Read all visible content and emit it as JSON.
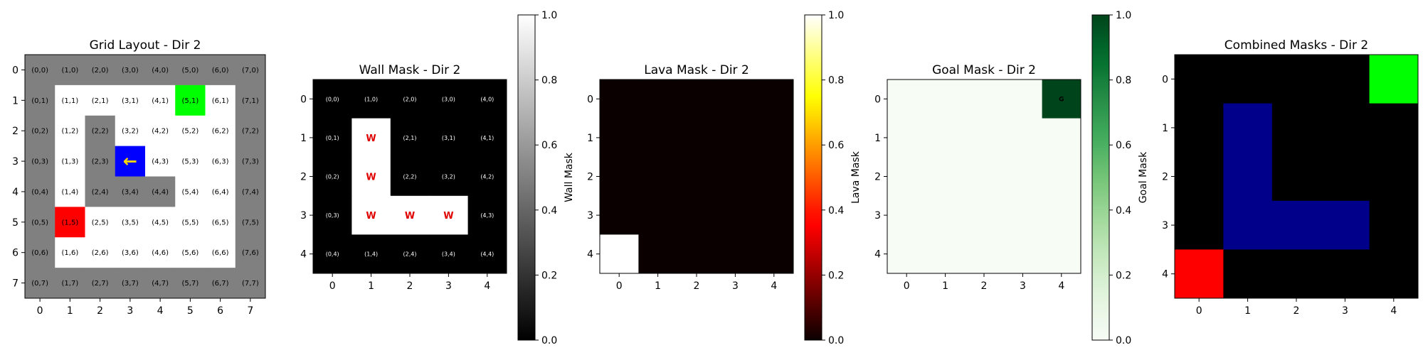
{
  "chart_data": [
    {
      "type": "heatmap",
      "id": "grid",
      "title": "Grid Layout - Dir 2",
      "size": 8,
      "x_ticks": [
        "0",
        "1",
        "2",
        "3",
        "4",
        "5",
        "6",
        "7"
      ],
      "y_ticks": [
        "0",
        "1",
        "2",
        "3",
        "4",
        "5",
        "6",
        "7"
      ],
      "cells": [
        [
          "(0,0)",
          "(1,0)",
          "(2,0)",
          "(3,0)",
          "(4,0)",
          "(5,0)",
          "(6,0)",
          "(7,0)"
        ],
        [
          "(0,1)",
          "(1,1)",
          "(2,1)",
          "(3,1)",
          "(4,1)",
          "(5,1)",
          "(6,1)",
          "(7,1)"
        ],
        [
          "(0,2)",
          "(1,2)",
          "(2,2)",
          "(3,2)",
          "(4,2)",
          "(5,2)",
          "(6,2)",
          "(7,2)"
        ],
        [
          "(0,3)",
          "(1,3)",
          "(2,3)",
          "",
          "(4,3)",
          "(5,3)",
          "(6,3)",
          "(7,3)"
        ],
        [
          "(0,4)",
          "(1,4)",
          "(2,4)",
          "(3,4)",
          "(4,4)",
          "(5,4)",
          "(6,4)",
          "(7,4)"
        ],
        [
          "(0,5)",
          "(1,5)",
          "(2,5)",
          "(3,5)",
          "(4,5)",
          "(5,5)",
          "(6,5)",
          "(7,5)"
        ],
        [
          "(0,6)",
          "(1,6)",
          "(2,6)",
          "(3,6)",
          "(4,6)",
          "(5,6)",
          "(6,6)",
          "(7,6)"
        ],
        [
          "(0,7)",
          "(1,7)",
          "(2,7)",
          "(3,7)",
          "(4,7)",
          "(5,7)",
          "(6,7)",
          "(7,7)"
        ]
      ],
      "cell_types": [
        "WWWWWWWW",
        "WEEEEGEW",
        "WEWEEEEW",
        "WEWAEEEW",
        "WEWWWEEW",
        "WLEEEEEW",
        "WEEEEEEW",
        "WWWWWWWW"
      ],
      "agent_symbol": "←",
      "colors": {
        "W": "#808080",
        "E": "#ffffff",
        "G": "#00ff00",
        "L": "#ff0000",
        "A": "#0000ff",
        "agent_arrow": "#ffd700"
      }
    },
    {
      "type": "heatmap",
      "id": "wall",
      "title": "Wall Mask - Dir 2",
      "size": 5,
      "x_ticks": [
        "0",
        "1",
        "2",
        "3",
        "4"
      ],
      "y_ticks": [
        "0",
        "1",
        "2",
        "3",
        "4"
      ],
      "values": [
        [
          0,
          0,
          0,
          0,
          0
        ],
        [
          0,
          1,
          0,
          0,
          0
        ],
        [
          0,
          1,
          0,
          0,
          0
        ],
        [
          0,
          1,
          1,
          1,
          0
        ],
        [
          0,
          0,
          0,
          0,
          0
        ]
      ],
      "cells": [
        [
          "(0,0)",
          "(1,0)",
          "(2,0)",
          "(3,0)",
          "(4,0)"
        ],
        [
          "(0,1)",
          "W",
          "(2,1)",
          "(3,1)",
          "(4,1)"
        ],
        [
          "(0,2)",
          "W",
          "(2,2)",
          "(3,2)",
          "(4,2)"
        ],
        [
          "(0,3)",
          "W",
          "W",
          "W",
          "(4,3)"
        ],
        [
          "(0,4)",
          "(1,4)",
          "(2,4)",
          "(3,4)",
          "(4,4)"
        ]
      ],
      "colormap": "gray",
      "colorbar": {
        "label": "Wall Mask",
        "ticks": [
          "0.0",
          "0.2",
          "0.4",
          "0.6",
          "0.8",
          "1.0"
        ]
      }
    },
    {
      "type": "heatmap",
      "id": "lava",
      "title": "Lava Mask - Dir 2",
      "size": 5,
      "x_ticks": [
        "0",
        "1",
        "2",
        "3",
        "4"
      ],
      "y_ticks": [
        "0",
        "1",
        "2",
        "3",
        "4"
      ],
      "values": [
        [
          0,
          0,
          0,
          0,
          0
        ],
        [
          0,
          0,
          0,
          0,
          0
        ],
        [
          0,
          0,
          0,
          0,
          0
        ],
        [
          0,
          0,
          0,
          0,
          0
        ],
        [
          1,
          0,
          0,
          0,
          0
        ]
      ],
      "colormap": "hot",
      "colorbar": {
        "label": "Lava Mask",
        "ticks": [
          "0.0",
          "0.2",
          "0.4",
          "0.6",
          "0.8",
          "1.0"
        ]
      }
    },
    {
      "type": "heatmap",
      "id": "goal",
      "title": "Goal Mask - Dir 2",
      "size": 5,
      "x_ticks": [
        "0",
        "1",
        "2",
        "3",
        "4"
      ],
      "y_ticks": [
        "0",
        "1",
        "2",
        "3",
        "4"
      ],
      "values": [
        [
          0,
          0,
          0,
          0,
          1
        ],
        [
          0,
          0,
          0,
          0,
          0
        ],
        [
          0,
          0,
          0,
          0,
          0
        ],
        [
          0,
          0,
          0,
          0,
          0
        ],
        [
          0,
          0,
          0,
          0,
          0
        ]
      ],
      "cells": [
        [
          "",
          "",
          "",
          "",
          "G"
        ],
        [
          "",
          "",
          "",
          "",
          ""
        ],
        [
          "",
          "",
          "",
          "",
          ""
        ],
        [
          "",
          "",
          "",
          "",
          ""
        ],
        [
          "",
          "",
          "",
          "",
          ""
        ]
      ],
      "colormap": "greens",
      "colorbar": {
        "label": "Goal Mask",
        "ticks": [
          "0.0",
          "0.2",
          "0.4",
          "0.6",
          "0.8",
          "1.0"
        ]
      }
    },
    {
      "type": "heatmap",
      "id": "combined",
      "title": "Combined Masks - Dir 2",
      "size": 5,
      "x_ticks": [
        "0",
        "1",
        "2",
        "3",
        "4"
      ],
      "y_ticks": [
        "0",
        "1",
        "2",
        "3",
        "4"
      ],
      "cell_types": [
        "KKKKG",
        "KWKKK",
        "KWKKK",
        "KWWWK",
        "LKKKK"
      ],
      "colors": {
        "K": "#000000",
        "W": "#00008b",
        "G": "#00ff00",
        "L": "#ff0000"
      }
    }
  ]
}
